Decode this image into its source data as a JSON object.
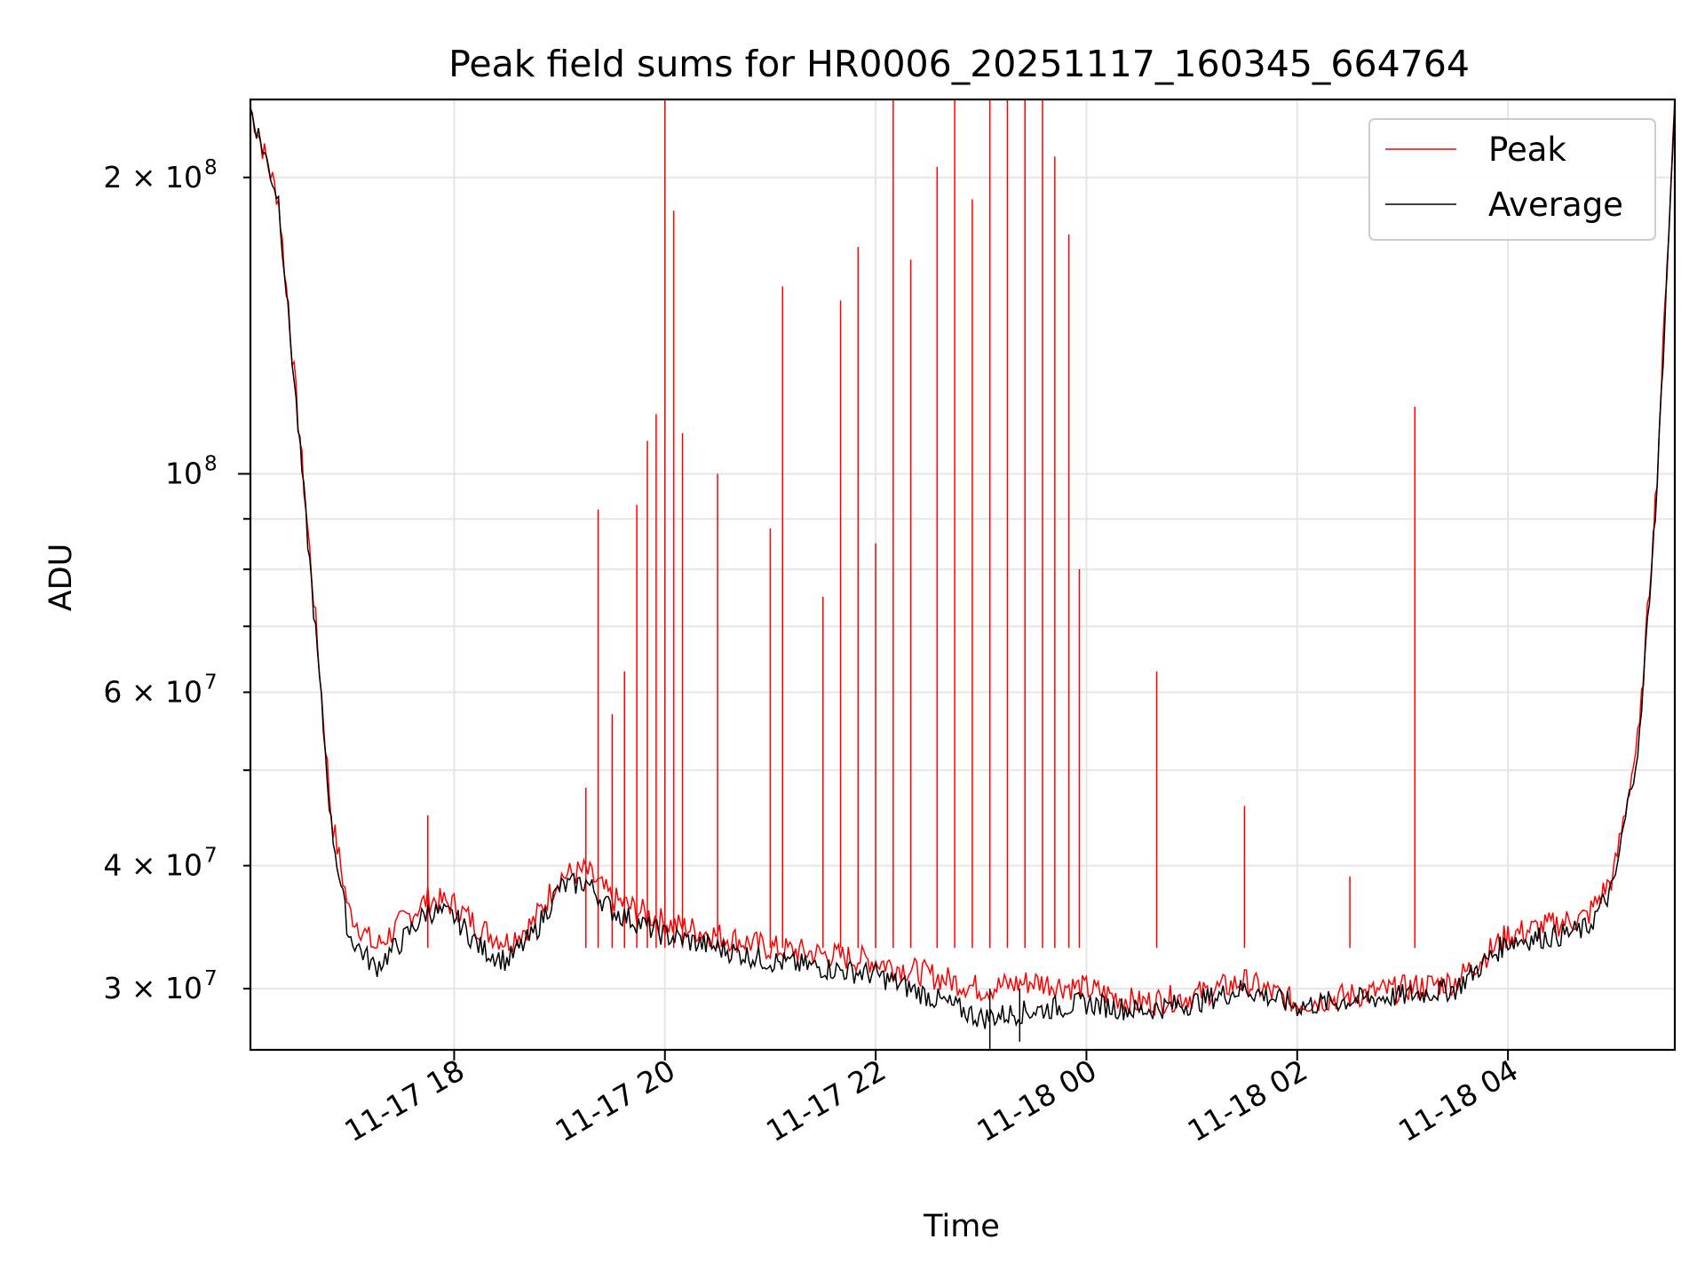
{
  "chart_data": {
    "type": "line",
    "title": "Peak field sums for HR0006_20251117_160345_664764",
    "xlabel": "Time",
    "ylabel": "ADU",
    "yscale": "log",
    "xlim": [
      "2025-11-17 16:04",
      "2025-11-18 05:35"
    ],
    "ylim": [
      26000000,
      240000000
    ],
    "grid": true,
    "legend": "top-right",
    "x_ticks": [
      {
        "value": "2025-11-17 18:00",
        "label": "11-17 18"
      },
      {
        "value": "2025-11-17 20:00",
        "label": "11-17 20"
      },
      {
        "value": "2025-11-17 22:00",
        "label": "11-17 22"
      },
      {
        "value": "2025-11-18 00:00",
        "label": "11-18 00"
      },
      {
        "value": "2025-11-18 02:00",
        "label": "11-18 02"
      },
      {
        "value": "2025-11-18 04:00",
        "label": "11-18 04"
      }
    ],
    "y_major_ticks": [
      {
        "value": 100000000,
        "label": "10",
        "exp": "8"
      }
    ],
    "y_minor_labeled_ticks": [
      {
        "value": 30000000,
        "label": "3 × 10",
        "exp": "7"
      },
      {
        "value": 40000000,
        "label": "4 × 10",
        "exp": "7"
      },
      {
        "value": 60000000,
        "label": "6 × 10",
        "exp": "7"
      },
      {
        "value": 200000000,
        "label": "2 × 10",
        "exp": "8"
      }
    ],
    "y_minor_ticks": [
      50000000,
      70000000,
      80000000,
      90000000
    ],
    "series": [
      {
        "name": "Peak",
        "color": "#ff0000",
        "x": [
          "2025-11-17 16:04",
          "2025-11-17 16:20",
          "2025-11-17 16:30",
          "2025-11-17 16:40",
          "2025-11-17 16:50",
          "2025-11-17 17:00",
          "2025-11-17 17:15",
          "2025-11-17 17:30",
          "2025-11-17 17:45",
          "2025-11-17 18:00",
          "2025-11-17 18:15",
          "2025-11-17 18:30",
          "2025-11-17 18:45",
          "2025-11-17 19:00",
          "2025-11-17 19:15",
          "2025-11-17 19:30",
          "2025-11-17 19:45",
          "2025-11-17 20:00",
          "2025-11-17 20:30",
          "2025-11-17 21:00",
          "2025-11-17 21:30",
          "2025-11-17 22:00",
          "2025-11-17 22:30",
          "2025-11-17 23:00",
          "2025-11-17 23:30",
          "2025-11-18 00:00",
          "2025-11-18 00:30",
          "2025-11-18 01:00",
          "2025-11-18 01:30",
          "2025-11-18 02:00",
          "2025-11-18 02:30",
          "2025-11-18 03:00",
          "2025-11-18 03:30",
          "2025-11-18 04:00",
          "2025-11-18 04:30",
          "2025-11-18 04:45",
          "2025-11-18 05:00",
          "2025-11-18 05:15",
          "2025-11-18 05:25",
          "2025-11-18 05:35"
        ],
        "y": [
          235000000,
          190000000,
          120000000,
          75000000,
          45000000,
          36000000,
          33000000,
          35000000,
          37000000,
          36500000,
          34500000,
          33500000,
          35000000,
          39000000,
          39500000,
          37000000,
          36000000,
          35000000,
          34000000,
          33000000,
          32500000,
          32000000,
          31000000,
          30000000,
          30500000,
          30000000,
          29000000,
          29500000,
          30500000,
          29000000,
          29500000,
          30000000,
          30500000,
          34000000,
          35000000,
          35500000,
          39000000,
          55000000,
          100000000,
          240000000
        ]
      },
      {
        "name": "Average",
        "color": "#000000",
        "x": [
          "2025-11-17 16:04",
          "2025-11-17 16:20",
          "2025-11-17 16:30",
          "2025-11-17 16:40",
          "2025-11-17 16:50",
          "2025-11-17 17:00",
          "2025-11-17 17:15",
          "2025-11-17 17:30",
          "2025-11-17 17:45",
          "2025-11-17 18:00",
          "2025-11-17 18:15",
          "2025-11-17 18:30",
          "2025-11-17 18:45",
          "2025-11-17 19:00",
          "2025-11-17 19:15",
          "2025-11-17 19:30",
          "2025-11-17 19:45",
          "2025-11-17 20:00",
          "2025-11-17 20:30",
          "2025-11-17 21:00",
          "2025-11-17 21:30",
          "2025-11-17 22:00",
          "2025-11-17 22:30",
          "2025-11-17 23:00",
          "2025-11-17 23:30",
          "2025-11-18 00:00",
          "2025-11-18 00:30",
          "2025-11-18 01:00",
          "2025-11-18 01:30",
          "2025-11-18 02:00",
          "2025-11-18 02:30",
          "2025-11-18 03:00",
          "2025-11-18 03:30",
          "2025-11-18 04:00",
          "2025-11-18 04:30",
          "2025-11-18 04:45",
          "2025-11-18 05:00",
          "2025-11-18 05:15",
          "2025-11-18 05:25",
          "2025-11-18 05:35"
        ],
        "y": [
          235000000,
          190000000,
          118000000,
          73000000,
          44000000,
          34000000,
          31500000,
          33500000,
          36000000,
          35500000,
          33000000,
          32000000,
          34000000,
          38000000,
          38500000,
          36000000,
          35000000,
          34000000,
          33000000,
          32000000,
          31500000,
          31000000,
          29500000,
          28000000,
          28500000,
          29000000,
          28500000,
          29000000,
          30000000,
          28800000,
          29200000,
          29500000,
          30000000,
          33500000,
          34000000,
          34500000,
          38000000,
          54000000,
          98000000,
          238000000
        ]
      }
    ],
    "peak_spikes": [
      {
        "x": "2025-11-17 17:45",
        "y": 45000000
      },
      {
        "x": "2025-11-17 19:15",
        "y": 48000000
      },
      {
        "x": "2025-11-17 19:22",
        "y": 92000000
      },
      {
        "x": "2025-11-17 19:30",
        "y": 57000000
      },
      {
        "x": "2025-11-17 19:37",
        "y": 63000000
      },
      {
        "x": "2025-11-17 19:44",
        "y": 93000000
      },
      {
        "x": "2025-11-17 19:50",
        "y": 108000000
      },
      {
        "x": "2025-11-17 19:55",
        "y": 115000000
      },
      {
        "x": "2025-11-17 20:00",
        "y": 240000000
      },
      {
        "x": "2025-11-17 20:05",
        "y": 185000000
      },
      {
        "x": "2025-11-17 20:10",
        "y": 110000000
      },
      {
        "x": "2025-11-17 20:30",
        "y": 100000000
      },
      {
        "x": "2025-11-17 21:00",
        "y": 88000000
      },
      {
        "x": "2025-11-17 21:07",
        "y": 155000000
      },
      {
        "x": "2025-11-17 21:30",
        "y": 75000000
      },
      {
        "x": "2025-11-17 21:40",
        "y": 150000000
      },
      {
        "x": "2025-11-17 21:50",
        "y": 170000000
      },
      {
        "x": "2025-11-17 22:00",
        "y": 85000000
      },
      {
        "x": "2025-11-17 22:10",
        "y": 240000000
      },
      {
        "x": "2025-11-17 22:20",
        "y": 165000000
      },
      {
        "x": "2025-11-17 22:35",
        "y": 205000000
      },
      {
        "x": "2025-11-17 22:45",
        "y": 240000000
      },
      {
        "x": "2025-11-17 22:55",
        "y": 190000000
      },
      {
        "x": "2025-11-17 23:05",
        "y": 240000000
      },
      {
        "x": "2025-11-17 23:15",
        "y": 240000000
      },
      {
        "x": "2025-11-17 23:25",
        "y": 240000000
      },
      {
        "x": "2025-11-17 23:35",
        "y": 240000000
      },
      {
        "x": "2025-11-17 23:42",
        "y": 210000000
      },
      {
        "x": "2025-11-17 23:50",
        "y": 175000000
      },
      {
        "x": "2025-11-17 23:56",
        "y": 80000000
      },
      {
        "x": "2025-11-18 00:40",
        "y": 63000000
      },
      {
        "x": "2025-11-18 01:30",
        "y": 46000000
      },
      {
        "x": "2025-11-18 02:30",
        "y": 39000000
      },
      {
        "x": "2025-11-18 03:07",
        "y": 117000000
      }
    ],
    "average_dips": [
      {
        "x": "2025-11-17 23:05",
        "y": 26000000
      },
      {
        "x": "2025-11-17 23:22",
        "y": 26500000
      }
    ]
  }
}
